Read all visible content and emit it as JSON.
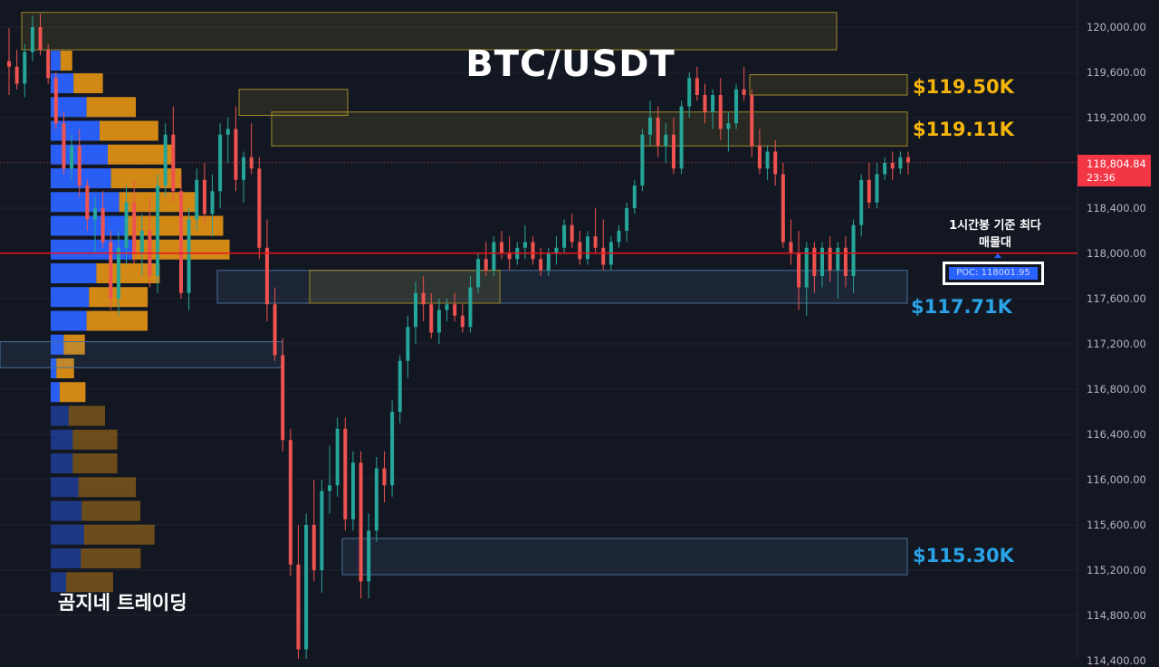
{
  "chart_data": {
    "type": "candlestick",
    "title": "BTC/USDT",
    "symbol": "BTC/USDT",
    "timeframe_note": "1시간봉 기준 최다 매물대",
    "ylim": [
      114400,
      120400
    ],
    "y_ticks": [
      "120,000.00",
      "119,600.00",
      "119,200.00",
      "118,800.00",
      "118,400.00",
      "118,000.00",
      "117,600.00",
      "117,200.00",
      "116,800.00",
      "116,400.00",
      "116,000.00",
      "115,600.00",
      "115,200.00",
      "114,800.00",
      "114,400.00"
    ],
    "y_tick_values": [
      120000,
      119600,
      119200,
      118800,
      118400,
      118000,
      117600,
      117200,
      116800,
      116400,
      116000,
      115600,
      115200,
      114800,
      114400
    ],
    "current_price": {
      "label": "118,804.84",
      "countdown": "23:36",
      "value": 118804.84
    },
    "poc": {
      "label": "POC: 118001.95",
      "value": 118001.95
    },
    "levels": [
      {
        "label": "$119.50K",
        "value": 119500,
        "color": "#f5b50b"
      },
      {
        "label": "$119.11K",
        "value": 119110,
        "color": "#f5b50b"
      },
      {
        "label": "$117.71K",
        "value": 117710,
        "color": "#29a3e6"
      },
      {
        "label": "$115.30K",
        "value": 115300,
        "color": "#29a3e6"
      }
    ],
    "zones": [
      {
        "kind": "supply",
        "x0": 0.02,
        "x1": 0.77,
        "top": 120130,
        "bottom": 119800
      },
      {
        "kind": "supply",
        "x0": 0.22,
        "x1": 0.32,
        "top": 119450,
        "bottom": 119220
      },
      {
        "kind": "supply",
        "x0": 0.25,
        "x1": 0.835,
        "top": 119250,
        "bottom": 118950
      },
      {
        "kind": "supply",
        "x0": 0.69,
        "x1": 0.835,
        "top": 119580,
        "bottom": 119400
      },
      {
        "kind": "demand",
        "x0": 0.2,
        "x1": 0.835,
        "top": 117850,
        "bottom": 117560
      },
      {
        "kind": "supply",
        "x0": 0.285,
        "x1": 0.46,
        "top": 117850,
        "bottom": 117560
      },
      {
        "kind": "demand",
        "x0": 0.0,
        "x1": 0.26,
        "top": 117220,
        "bottom": 116990
      },
      {
        "kind": "demand",
        "x0": 0.315,
        "x1": 0.835,
        "top": 115480,
        "bottom": 115160
      }
    ],
    "volume_profile": [
      {
        "price": 119700,
        "buy": 0.12,
        "sell": 0.1
      },
      {
        "price": 119500,
        "buy": 0.28,
        "sell": 0.25
      },
      {
        "price": 119290,
        "buy": 0.44,
        "sell": 0.42
      },
      {
        "price": 119080,
        "buy": 0.6,
        "sell": 0.5
      },
      {
        "price": 118870,
        "buy": 0.7,
        "sell": 0.57
      },
      {
        "price": 118660,
        "buy": 0.74,
        "sell": 0.6
      },
      {
        "price": 118450,
        "buy": 0.84,
        "sell": 0.67
      },
      {
        "price": 118240,
        "buy": 0.95,
        "sell": 0.81
      },
      {
        "price": 118030,
        "buy": 1.0,
        "sell": 0.83
      },
      {
        "price": 117820,
        "buy": 0.56,
        "sell": 0.54
      },
      {
        "price": 117610,
        "buy": 0.47,
        "sell": 0.5
      },
      {
        "price": 117400,
        "buy": 0.44,
        "sell": 0.52
      },
      {
        "price": 117190,
        "buy": 0.16,
        "sell": 0.18
      },
      {
        "price": 116980,
        "buy": 0.07,
        "sell": 0.15
      },
      {
        "price": 116770,
        "buy": 0.11,
        "sell": 0.22
      },
      {
        "price": 116560,
        "buy": 0.22,
        "sell": 0.31
      },
      {
        "price": 116350,
        "buy": 0.27,
        "sell": 0.38
      },
      {
        "price": 116140,
        "buy": 0.27,
        "sell": 0.38
      },
      {
        "price": 115930,
        "buy": 0.34,
        "sell": 0.49
      },
      {
        "price": 115720,
        "buy": 0.38,
        "sell": 0.5
      },
      {
        "price": 115510,
        "buy": 0.41,
        "sell": 0.6
      },
      {
        "price": 115300,
        "buy": 0.37,
        "sell": 0.51
      },
      {
        "price": 115090,
        "buy": 0.19,
        "sell": 0.4
      }
    ],
    "candles": [
      [
        119700,
        119990,
        119400,
        119650
      ],
      [
        119650,
        119800,
        119450,
        119500
      ],
      [
        119500,
        119850,
        119380,
        119780
      ],
      [
        119780,
        120100,
        119700,
        120000
      ],
      [
        120000,
        120120,
        119750,
        119800
      ],
      [
        119800,
        119850,
        119500,
        119550
      ],
      [
        119550,
        119600,
        119100,
        119150
      ],
      [
        119150,
        119250,
        118700,
        118750
      ],
      [
        118750,
        119050,
        118650,
        118950
      ],
      [
        118950,
        119100,
        118500,
        118600
      ],
      [
        118600,
        118650,
        118200,
        118300
      ],
      [
        118300,
        118500,
        118000,
        118400
      ],
      [
        118400,
        118550,
        118050,
        118100
      ],
      [
        118100,
        118200,
        117500,
        117600
      ],
      [
        117600,
        118200,
        117450,
        118050
      ],
      [
        118050,
        118600,
        117900,
        118450
      ],
      [
        118450,
        118650,
        117900,
        118000
      ],
      [
        118000,
        118350,
        117800,
        118200
      ],
      [
        118200,
        118500,
        117700,
        117800
      ],
      [
        117800,
        118700,
        117650,
        118600
      ],
      [
        118600,
        119150,
        118500,
        119050
      ],
      [
        119050,
        119300,
        118450,
        118550
      ],
      [
        118550,
        118700,
        117600,
        117650
      ],
      [
        117650,
        118400,
        117500,
        118300
      ],
      [
        118300,
        118750,
        118200,
        118650
      ],
      [
        118650,
        118800,
        118250,
        118350
      ],
      [
        118350,
        118700,
        118150,
        118550
      ],
      [
        118550,
        119150,
        118400,
        119050
      ],
      [
        119050,
        119200,
        118800,
        119100
      ],
      [
        119100,
        119300,
        118550,
        118650
      ],
      [
        118650,
        118900,
        118450,
        118850
      ],
      [
        118850,
        119150,
        118700,
        118750
      ],
      [
        118750,
        118850,
        117950,
        118050
      ],
      [
        118050,
        118300,
        117400,
        117550
      ],
      [
        117550,
        117700,
        117050,
        117100
      ],
      [
        117100,
        117250,
        116250,
        116350
      ],
      [
        116350,
        116450,
        115150,
        115250
      ],
      [
        115250,
        115600,
        114400,
        114500
      ],
      [
        114500,
        115700,
        114350,
        115600
      ],
      [
        115600,
        116000,
        115100,
        115200
      ],
      [
        115200,
        116000,
        115000,
        115900
      ],
      [
        115900,
        116300,
        115700,
        115950
      ],
      [
        115950,
        116550,
        115850,
        116450
      ],
      [
        116450,
        116550,
        115550,
        115650
      ],
      [
        115650,
        116250,
        115550,
        116150
      ],
      [
        116150,
        116250,
        114950,
        115100
      ],
      [
        115100,
        115700,
        114950,
        115550
      ],
      [
        115550,
        116200,
        115450,
        116100
      ],
      [
        116100,
        116250,
        115800,
        115950
      ],
      [
        115950,
        116700,
        115850,
        116600
      ],
      [
        116600,
        117100,
        116500,
        117050
      ],
      [
        117050,
        117450,
        116900,
        117350
      ],
      [
        117350,
        117750,
        117200,
        117650
      ],
      [
        117650,
        117800,
        117400,
        117550
      ],
      [
        117550,
        117650,
        117250,
        117300
      ],
      [
        117300,
        117600,
        117200,
        117500
      ],
      [
        117500,
        117600,
        117400,
        117550
      ],
      [
        117550,
        117650,
        117400,
        117450
      ],
      [
        117450,
        117550,
        117300,
        117350
      ],
      [
        117350,
        117800,
        117300,
        117700
      ],
      [
        117700,
        118000,
        117650,
        117950
      ],
      [
        117950,
        118100,
        117800,
        117850
      ],
      [
        117850,
        118150,
        117800,
        118100
      ],
      [
        118100,
        118200,
        117950,
        118000
      ],
      [
        118000,
        118150,
        117850,
        117950
      ],
      [
        117950,
        118100,
        117900,
        118050
      ],
      [
        118050,
        118250,
        117950,
        118100
      ],
      [
        118100,
        118150,
        117900,
        117950
      ],
      [
        117950,
        118050,
        117800,
        117850
      ],
      [
        117850,
        118050,
        117800,
        118000
      ],
      [
        118000,
        118150,
        117900,
        118050
      ],
      [
        118050,
        118300,
        118000,
        118250
      ],
      [
        118250,
        118350,
        118050,
        118100
      ],
      [
        118100,
        118200,
        117900,
        117950
      ],
      [
        117950,
        118200,
        117900,
        118150
      ],
      [
        118150,
        118400,
        118000,
        118050
      ],
      [
        118050,
        118300,
        117850,
        117900
      ],
      [
        117900,
        118150,
        117850,
        118100
      ],
      [
        118100,
        118250,
        118050,
        118200
      ],
      [
        118200,
        118450,
        118100,
        118400
      ],
      [
        118400,
        118650,
        118350,
        118600
      ],
      [
        118600,
        119100,
        118550,
        119050
      ],
      [
        119050,
        119350,
        118950,
        119200
      ],
      [
        119200,
        119300,
        118850,
        118950
      ],
      [
        118950,
        119150,
        118800,
        119050
      ],
      [
        119050,
        119200,
        118700,
        118750
      ],
      [
        118750,
        119350,
        118700,
        119300
      ],
      [
        119300,
        119600,
        119200,
        119550
      ],
      [
        119550,
        119650,
        119350,
        119400
      ],
      [
        119400,
        119500,
        119150,
        119250
      ],
      [
        119250,
        119450,
        119100,
        119400
      ],
      [
        119400,
        119550,
        119000,
        119100
      ],
      [
        119100,
        119250,
        118900,
        119150
      ],
      [
        119150,
        119500,
        119100,
        119450
      ],
      [
        119450,
        119650,
        119350,
        119400
      ],
      [
        119400,
        119450,
        118850,
        118950
      ],
      [
        118950,
        119100,
        118700,
        118750
      ],
      [
        118750,
        118950,
        118650,
        118900
      ],
      [
        118900,
        119000,
        118600,
        118700
      ],
      [
        118700,
        118800,
        118050,
        118100
      ],
      [
        118100,
        118300,
        117900,
        118000
      ],
      [
        118000,
        118200,
        117500,
        117700
      ],
      [
        117700,
        118100,
        117450,
        118050
      ],
      [
        118050,
        118100,
        117650,
        117800
      ],
      [
        117800,
        118100,
        117700,
        118050
      ],
      [
        118050,
        118150,
        117750,
        117850
      ],
      [
        117850,
        118100,
        117600,
        118050
      ],
      [
        118050,
        118150,
        117700,
        117800
      ],
      [
        117800,
        118300,
        117650,
        118250
      ],
      [
        118250,
        118700,
        118150,
        118650
      ],
      [
        118650,
        118800,
        118400,
        118450
      ],
      [
        118450,
        118800,
        118400,
        118700
      ],
      [
        118700,
        118850,
        118650,
        118800
      ],
      [
        118800,
        118900,
        118650,
        118750
      ],
      [
        118750,
        118900,
        118700,
        118850
      ],
      [
        118850,
        118900,
        118700,
        118805
      ]
    ]
  }
}
